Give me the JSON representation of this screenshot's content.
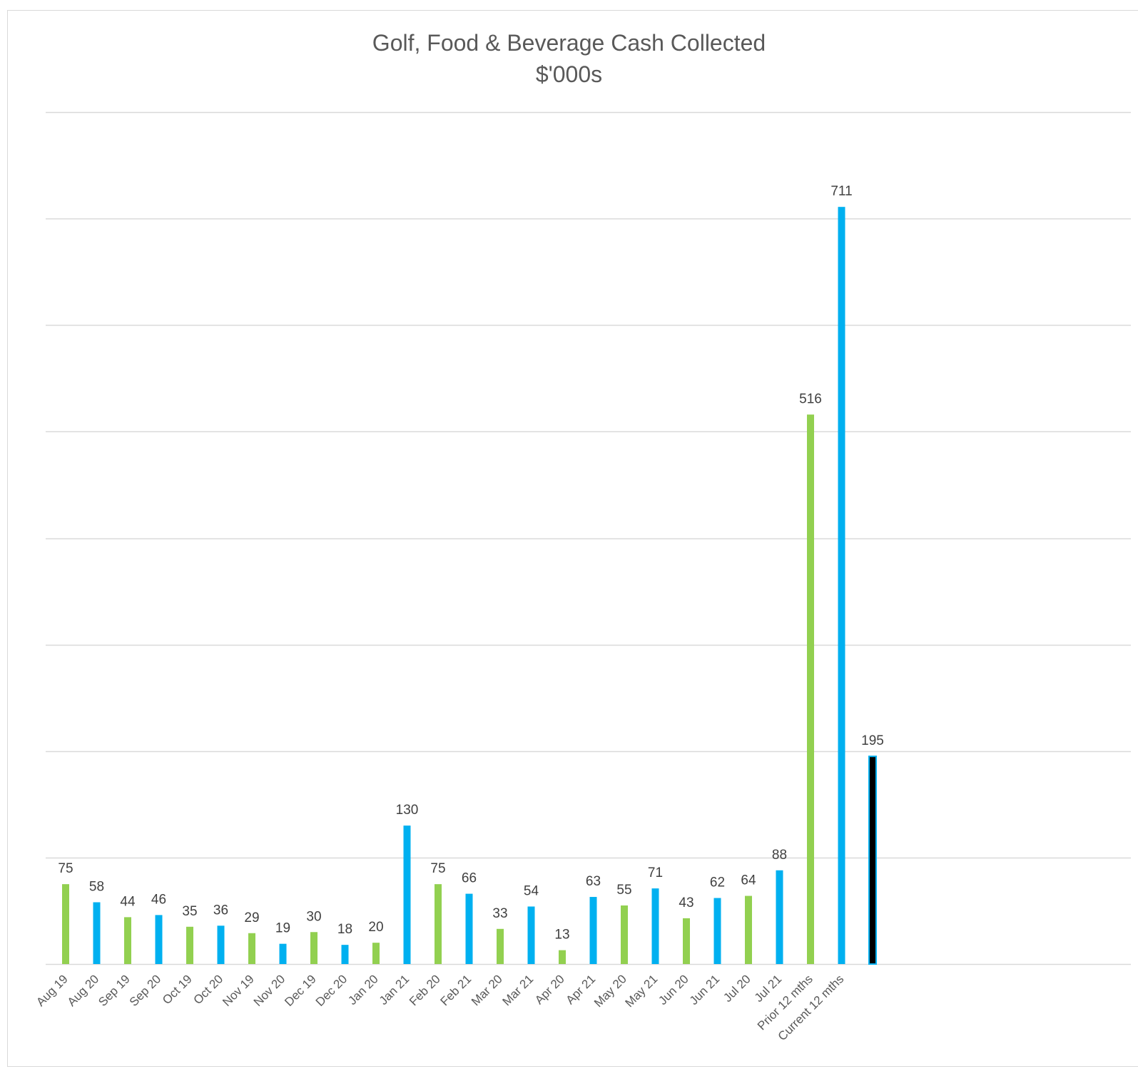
{
  "chart_data": {
    "type": "bar",
    "title": "Golf, Food & Beverage Cash Collected",
    "subtitle": "$'000s",
    "xlabel": "",
    "ylabel": "",
    "ylim": [
      0,
      800
    ],
    "y_gridline_step": 100,
    "y_tick_labels_shown": false,
    "grid": true,
    "legend": "none",
    "categories": [
      "Aug 19",
      "Aug 20",
      "Sep 19",
      "Sep 20",
      "Oct 19",
      "Oct 20",
      "Nov 19",
      "Nov 20",
      "Dec 19",
      "Dec 20",
      "Jan 20",
      "Jan 21",
      "Feb 20",
      "Feb 21",
      "Mar 20",
      "Mar 21",
      "Apr 20",
      "Apr 21",
      "May 20",
      "May 21",
      "Jun 20",
      "Jun 21",
      "Jul 20",
      "Jul 21",
      "Prior 12 mths",
      "Current 12 mths",
      ""
    ],
    "values": [
      75,
      58,
      44,
      46,
      35,
      36,
      29,
      19,
      30,
      18,
      20,
      130,
      75,
      66,
      33,
      54,
      13,
      63,
      55,
      71,
      43,
      62,
      64,
      88,
      516,
      711,
      195
    ],
    "bar_colors": [
      "#92d050",
      "#00b0f0",
      "#92d050",
      "#00b0f0",
      "#92d050",
      "#00b0f0",
      "#92d050",
      "#00b0f0",
      "#92d050",
      "#00b0f0",
      "#92d050",
      "#00b0f0",
      "#92d050",
      "#00b0f0",
      "#92d050",
      "#00b0f0",
      "#92d050",
      "#00b0f0",
      "#92d050",
      "#00b0f0",
      "#92d050",
      "#00b0f0",
      "#92d050",
      "#00b0f0",
      "#92d050",
      "#00b0f0",
      "#000000"
    ],
    "bar_outline_colors": [
      "",
      "",
      "",
      "",
      "",
      "",
      "",
      "",
      "",
      "",
      "",
      "",
      "",
      "",
      "",
      "",
      "",
      "",
      "",
      "",
      "",
      "",
      "",
      "",
      "",
      "",
      "#00b0f0"
    ],
    "colors": {
      "previous_year": "#92d050",
      "current_year": "#00b0f0",
      "extra_bar": "#000000",
      "gridline": "#d9d9d9",
      "title_text": "#595959",
      "label_text": "#404040"
    }
  }
}
